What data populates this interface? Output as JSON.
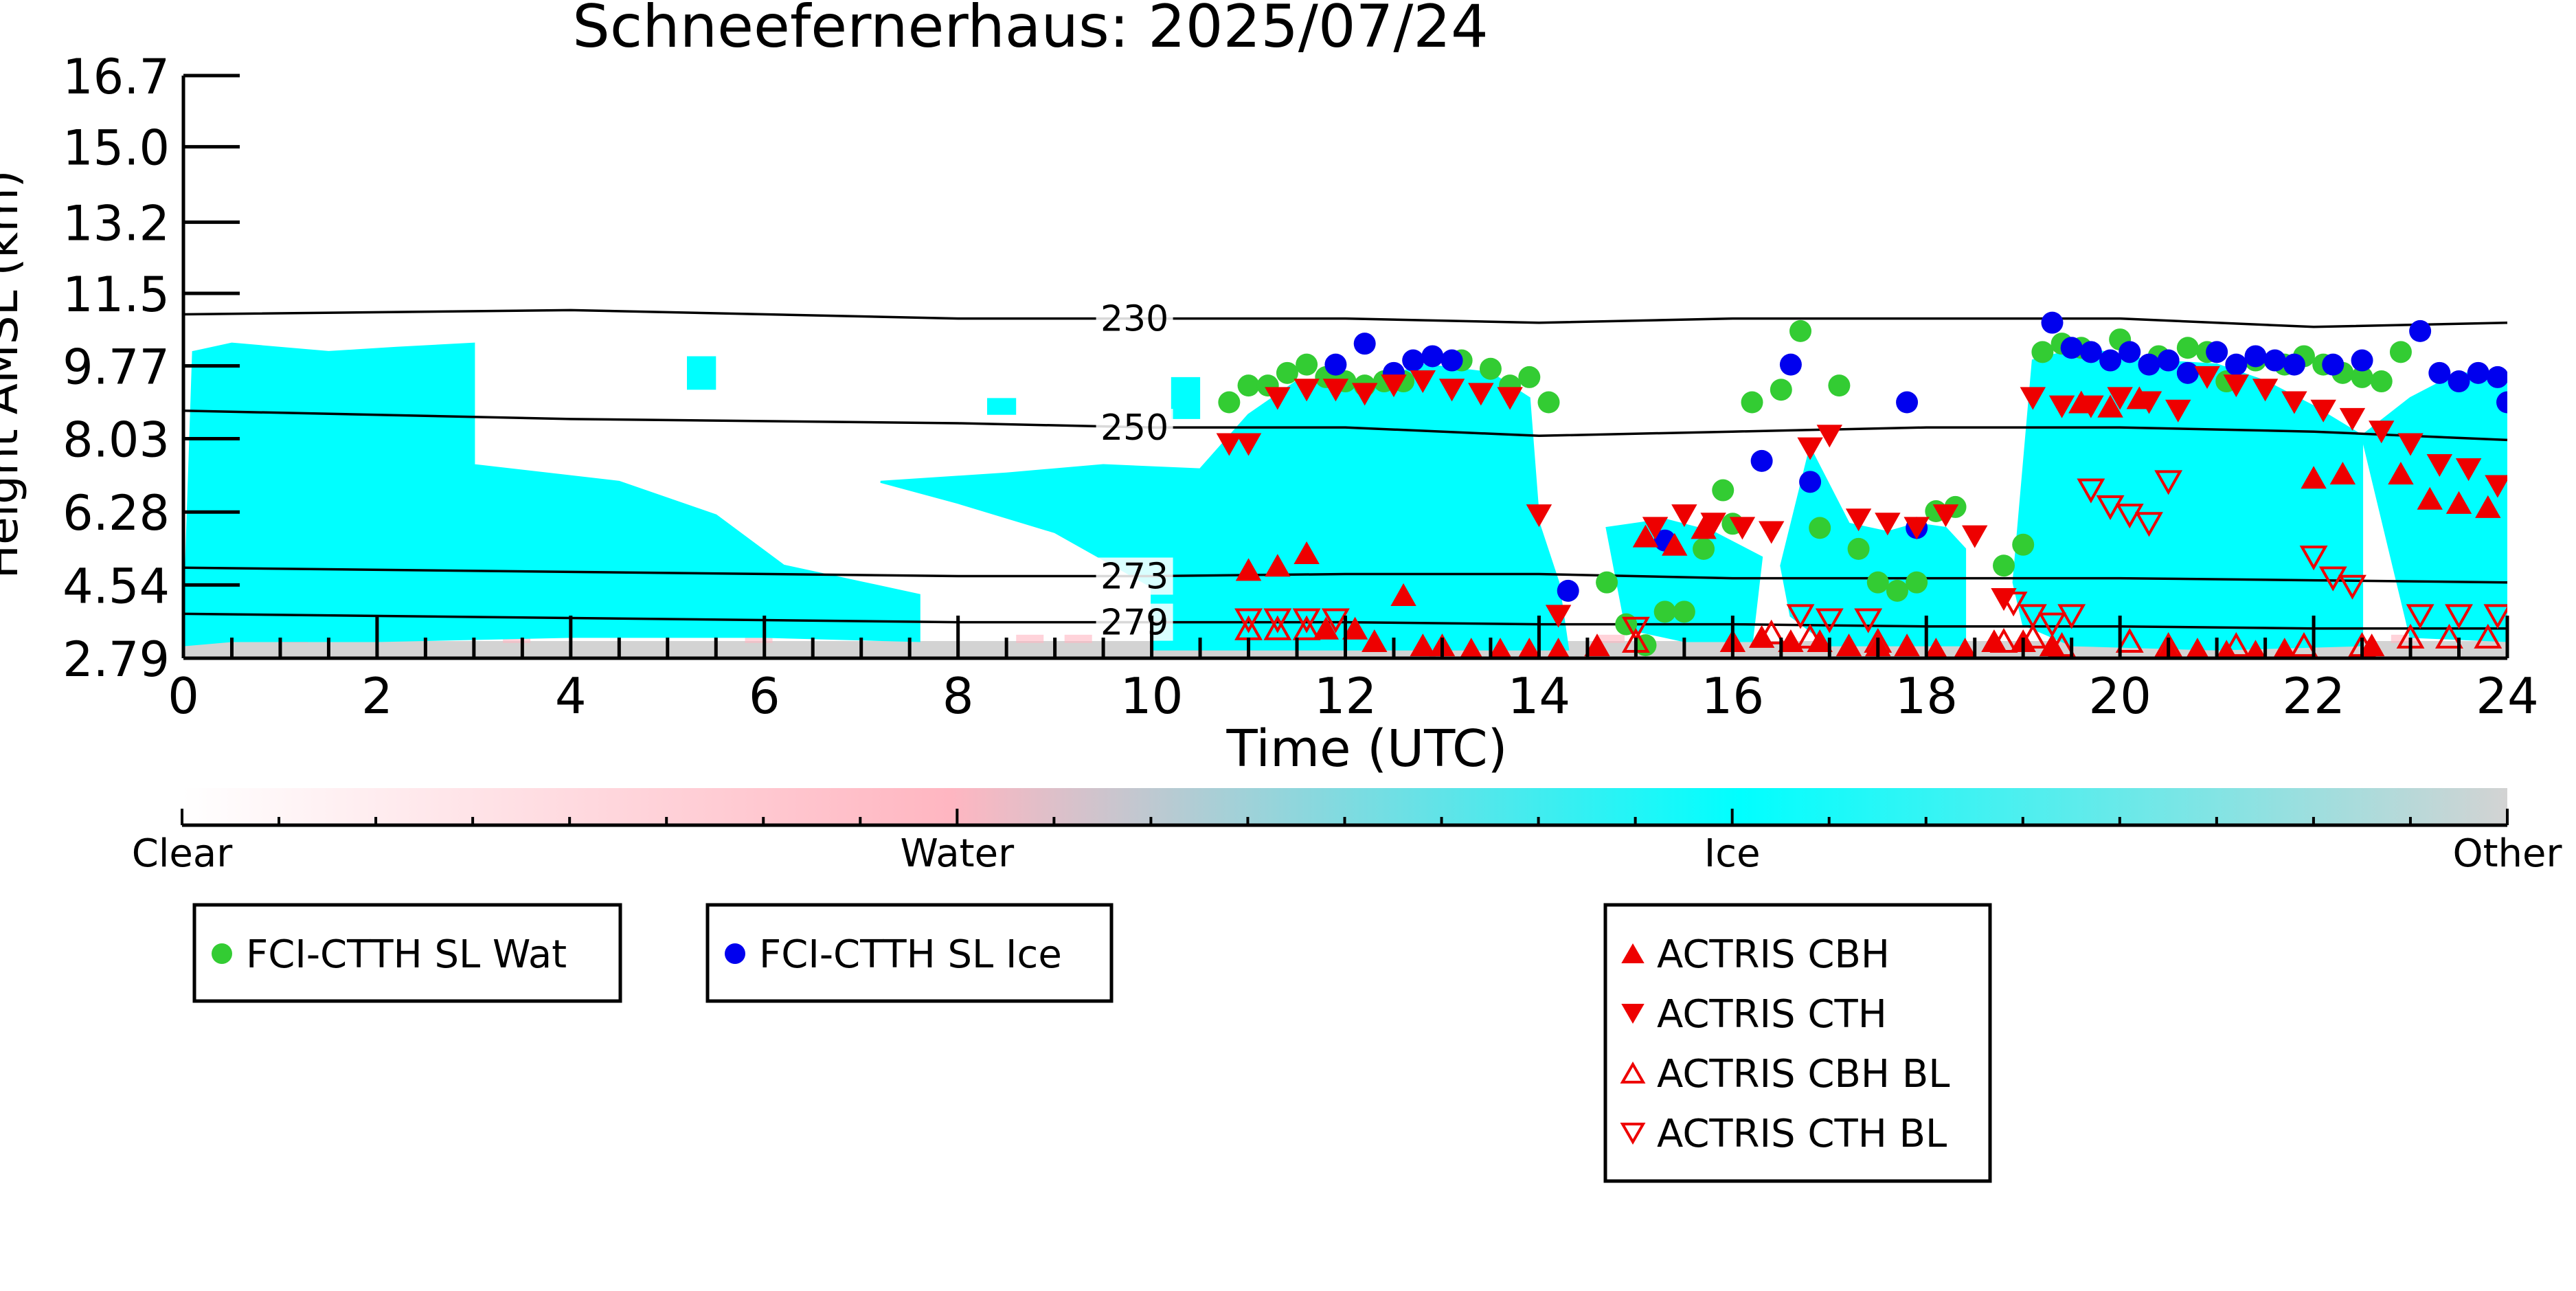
{
  "chart_data": {
    "type": "scatter",
    "title": "Schneefernerhaus: 2025/07/24",
    "xlabel": "Time (UTC)",
    "ylabel": "Height AMSL (km)",
    "xlim": [
      0,
      24
    ],
    "ylim": [
      2.79,
      16.7
    ],
    "x_ticks": [
      0,
      2,
      4,
      6,
      8,
      10,
      12,
      14,
      16,
      18,
      20,
      22,
      24
    ],
    "y_ticks": [
      2.79,
      4.54,
      6.28,
      8.03,
      9.77,
      11.5,
      13.2,
      15.0,
      16.7
    ],
    "y_tick_labels": [
      "2.79",
      "4.54",
      "6.28",
      "8.03",
      "9.77",
      "11.5",
      "13.2",
      "15.0",
      "16.7"
    ],
    "grid": false,
    "background_field": {
      "description_classes": [
        "Clear",
        "Water",
        "Ice",
        "Other"
      ],
      "class_colors": {
        "Clear": "#ffffff",
        "Water": "#ffb6c1",
        "Ice": "#00ffff",
        "Other": "#d3d3d3"
      },
      "ice_regions": [
        {
          "x": [
            0,
            0.1,
            0.5,
            1.5,
            2.2,
            3.0,
            3.0,
            4.5,
            5.5,
            6.2,
            7.0,
            7.6,
            7.6,
            6.0,
            4.0,
            2.0,
            0.5,
            0
          ],
          "y": [
            3.1,
            10.1,
            10.3,
            10.1,
            10.2,
            10.3,
            7.4,
            7.0,
            6.2,
            5.0,
            4.6,
            4.3,
            3.2,
            3.3,
            3.3,
            3.2,
            3.2,
            3.1
          ]
        },
        {
          "x": [
            7.2,
            8.5,
            9.5,
            10.5,
            11.0,
            11.5,
            12.2,
            12.8,
            13.5,
            13.9,
            14.0,
            14.2,
            14.3,
            12.0,
            10.0,
            10.0,
            9.0,
            8.0
          ],
          "y": [
            7.0,
            7.2,
            7.4,
            7.3,
            8.6,
            9.4,
            9.3,
            9.8,
            9.6,
            9.0,
            6.0,
            4.6,
            3.0,
            3.0,
            3.0,
            4.5,
            5.8,
            6.5
          ]
        },
        {
          "x": [
            14.7,
            15.3,
            15.8,
            16.3,
            16.2,
            15.5,
            14.9
          ],
          "y": [
            5.9,
            6.1,
            5.8,
            5.2,
            3.2,
            3.2,
            3.5
          ]
        },
        {
          "x": [
            16.5,
            16.8,
            17.2,
            17.6,
            17.9,
            18.2,
            18.4,
            18.4,
            17.0,
            16.6
          ],
          "y": [
            5.0,
            7.8,
            6.0,
            5.8,
            6.0,
            5.9,
            5.4,
            3.1,
            3.1,
            3.8
          ]
        },
        {
          "x": [
            18.9,
            19.1,
            19.6,
            20.3,
            21.0,
            21.5,
            22.0,
            22.5,
            22.5,
            21.0,
            19.5,
            19.0
          ],
          "y": [
            4.6,
            9.9,
            10.2,
            9.9,
            9.8,
            9.4,
            8.8,
            8.1,
            3.1,
            3.0,
            3.1,
            3.6
          ]
        },
        {
          "x": [
            22.5,
            23.0,
            23.5,
            24.0,
            24.0,
            23.0
          ],
          "y": [
            8.1,
            9.0,
            9.6,
            9.5,
            3.2,
            3.3
          ]
        }
      ],
      "ice_patches": [
        {
          "x": [
            5.2,
            5.5,
            5.5,
            5.2
          ],
          "y": [
            10.0,
            10.0,
            9.2,
            9.2
          ]
        },
        {
          "x": [
            8.3,
            8.6,
            8.6,
            8.3
          ],
          "y": [
            9.0,
            9.0,
            8.6,
            8.6
          ]
        },
        {
          "x": [
            10.2,
            10.5,
            10.5,
            10.2
          ],
          "y": [
            9.5,
            9.5,
            8.5,
            8.5
          ]
        }
      ],
      "other_layer": {
        "x": [
          0,
          24
        ],
        "y": [
          2.79,
          3.2
        ]
      }
    },
    "isotherms": [
      {
        "label": "230",
        "x": [
          0,
          4,
          8,
          10,
          12,
          14,
          16,
          18,
          20,
          22,
          24
        ],
        "y": [
          11.0,
          11.1,
          10.9,
          10.9,
          10.9,
          10.8,
          10.9,
          10.9,
          10.9,
          10.7,
          10.8
        ]
      },
      {
        "label": "250",
        "x": [
          0,
          4,
          8,
          10,
          12,
          14,
          16,
          18,
          20,
          22,
          24
        ],
        "y": [
          8.7,
          8.5,
          8.4,
          8.3,
          8.3,
          8.1,
          8.2,
          8.3,
          8.3,
          8.2,
          8.0
        ]
      },
      {
        "label": "273",
        "x": [
          0,
          4,
          8,
          10,
          12,
          14,
          16,
          18,
          20,
          22,
          24
        ],
        "y": [
          4.95,
          4.85,
          4.75,
          4.75,
          4.8,
          4.8,
          4.7,
          4.7,
          4.7,
          4.65,
          4.6
        ]
      },
      {
        "label": "279",
        "x": [
          0,
          4,
          8,
          10,
          12,
          14,
          16,
          18,
          20,
          22,
          24
        ],
        "y": [
          3.85,
          3.75,
          3.65,
          3.65,
          3.65,
          3.6,
          3.6,
          3.55,
          3.55,
          3.5,
          3.5
        ]
      }
    ],
    "series": [
      {
        "name": "FCI-CTTH SL Wat",
        "marker": "circle",
        "color": "#33cc33",
        "x": [
          10.8,
          11.0,
          11.2,
          11.4,
          11.6,
          11.8,
          12.0,
          12.2,
          12.4,
          12.6,
          13.2,
          13.5,
          13.7,
          13.9,
          14.1,
          14.7,
          14.9,
          15.1,
          15.3,
          15.5,
          15.7,
          15.9,
          16.0,
          16.2,
          16.5,
          16.7,
          16.9,
          17.1,
          17.3,
          17.5,
          17.7,
          17.9,
          18.1,
          18.3,
          18.8,
          19.0,
          19.2,
          19.4,
          19.6,
          20.0,
          20.4,
          20.7,
          20.9,
          21.1,
          21.4,
          21.7,
          21.9,
          22.1,
          22.3,
          22.5,
          22.7,
          22.9
        ],
        "y": [
          8.9,
          9.3,
          9.3,
          9.6,
          9.8,
          9.5,
          9.4,
          9.3,
          9.4,
          9.4,
          9.9,
          9.7,
          9.3,
          9.5,
          8.9,
          4.6,
          3.6,
          3.1,
          3.9,
          3.9,
          5.4,
          6.8,
          6.0,
          8.9,
          9.2,
          10.6,
          5.9,
          9.3,
          5.4,
          4.6,
          4.4,
          4.6,
          6.3,
          6.4,
          5.0,
          5.5,
          10.1,
          10.3,
          10.2,
          10.4,
          10.0,
          10.2,
          10.1,
          9.4,
          9.9,
          9.8,
          10.0,
          9.8,
          9.6,
          9.5,
          9.4,
          10.1
        ]
      },
      {
        "name": "FCI-CTTH SL Ice",
        "marker": "circle",
        "color": "#0000ee",
        "x": [
          11.9,
          12.2,
          12.5,
          12.7,
          12.9,
          13.1,
          14.3,
          15.3,
          16.3,
          16.6,
          16.8,
          17.8,
          17.9,
          19.3,
          19.5,
          19.7,
          19.9,
          20.1,
          20.3,
          20.5,
          20.7,
          21.0,
          21.2,
          21.4,
          21.6,
          21.8,
          22.2,
          22.5,
          23.1,
          23.3,
          23.5,
          23.7,
          23.9,
          24.0
        ],
        "y": [
          9.8,
          10.3,
          9.6,
          9.9,
          10.0,
          9.9,
          4.4,
          5.6,
          7.5,
          9.8,
          7.0,
          8.9,
          5.9,
          10.8,
          10.2,
          10.1,
          9.9,
          10.1,
          9.8,
          9.9,
          9.6,
          10.1,
          9.8,
          10.0,
          9.9,
          9.8,
          9.8,
          9.9,
          10.6,
          9.6,
          9.4,
          9.6,
          9.5,
          8.9
        ]
      },
      {
        "name": "ACTRIS CBH",
        "marker": "triangle-up",
        "color": "#ee0000",
        "filled": true,
        "x": [
          11.0,
          11.3,
          11.6,
          11.8,
          12.1,
          12.3,
          12.6,
          12.8,
          13.0,
          13.3,
          13.6,
          13.9,
          14.2,
          14.6,
          15.1,
          15.4,
          15.7,
          16.0,
          16.3,
          16.6,
          16.9,
          17.2,
          17.5,
          17.8,
          18.1,
          18.4,
          18.7,
          19.0,
          19.3,
          19.6,
          19.9,
          20.2,
          20.5,
          20.8,
          21.1,
          21.4,
          21.7,
          22.0,
          22.3,
          22.6,
          22.9,
          23.2,
          23.5,
          23.8
        ],
        "y": [
          4.9,
          5.0,
          5.3,
          3.5,
          3.5,
          3.2,
          4.3,
          3.1,
          3.1,
          3.0,
          3.0,
          3.0,
          3.0,
          3.1,
          5.7,
          5.5,
          5.9,
          3.2,
          3.3,
          3.2,
          3.2,
          3.1,
          3.1,
          3.1,
          3.0,
          3.0,
          3.2,
          3.2,
          3.1,
          8.9,
          8.8,
          9.0,
          3.0,
          3.0,
          2.95,
          2.95,
          3.0,
          7.1,
          7.2,
          3.1,
          7.2,
          6.6,
          6.5,
          6.4
        ]
      },
      {
        "name": "ACTRIS CTH",
        "marker": "triangle-down",
        "color": "#ee0000",
        "filled": true,
        "x": [
          10.8,
          11.0,
          11.3,
          11.6,
          11.9,
          12.2,
          12.5,
          12.8,
          13.1,
          13.4,
          13.7,
          14.0,
          14.2,
          15.2,
          15.5,
          15.8,
          16.1,
          16.4,
          16.8,
          17.0,
          17.3,
          17.6,
          17.9,
          18.2,
          18.5,
          18.8,
          19.1,
          19.4,
          19.7,
          20.0,
          20.3,
          20.6,
          20.9,
          21.2,
          21.5,
          21.8,
          22.1,
          22.4,
          22.7,
          23.0,
          23.3,
          23.6,
          23.9
        ],
        "y": [
          7.9,
          7.9,
          9.0,
          9.2,
          9.2,
          9.1,
          9.3,
          9.4,
          9.2,
          9.1,
          9.0,
          6.2,
          3.8,
          5.9,
          6.2,
          6.0,
          5.9,
          5.8,
          7.8,
          8.1,
          6.1,
          6.0,
          5.9,
          6.2,
          5.7,
          4.2,
          9.0,
          8.8,
          8.8,
          9.0,
          8.9,
          8.7,
          9.5,
          9.3,
          9.2,
          8.9,
          8.7,
          8.5,
          8.2,
          7.9,
          7.4,
          7.3,
          6.9
        ]
      },
      {
        "name": "ACTRIS CBH BL",
        "marker": "triangle-up",
        "color": "#ee0000",
        "filled": false,
        "x": [
          11.0,
          11.3,
          11.6,
          15.0,
          16.4,
          16.8,
          17.5,
          18.8,
          19.1,
          19.4,
          20.1,
          20.5,
          21.2,
          21.9,
          22.5,
          23.0,
          23.4,
          23.8
        ],
        "y": [
          3.5,
          3.5,
          3.5,
          3.2,
          3.4,
          3.3,
          3.2,
          3.2,
          3.3,
          3.1,
          3.2,
          3.1,
          3.1,
          3.1,
          3.1,
          3.3,
          3.3,
          3.3
        ]
      },
      {
        "name": "ACTRIS CTH BL",
        "marker": "triangle-down",
        "color": "#ee0000",
        "filled": false,
        "x": [
          11.0,
          11.3,
          11.6,
          11.9,
          15.0,
          16.7,
          17.0,
          17.4,
          18.9,
          19.1,
          19.3,
          19.5,
          19.7,
          19.9,
          20.1,
          20.3,
          20.5,
          22.0,
          22.2,
          22.4,
          23.1,
          23.5,
          23.9
        ],
        "y": [
          3.7,
          3.7,
          3.7,
          3.7,
          3.5,
          3.8,
          3.7,
          3.7,
          4.1,
          3.8,
          3.6,
          3.8,
          6.8,
          6.4,
          6.2,
          6.0,
          7.0,
          5.2,
          4.7,
          4.5,
          3.8,
          3.8,
          3.8
        ]
      }
    ],
    "colorbar": {
      "labels": [
        "Clear",
        "Water",
        "Ice",
        "Other"
      ],
      "stops": [
        {
          "pos": 0.0,
          "color": "#ffffff"
        },
        {
          "pos": 0.33,
          "color": "#ffb6c1"
        },
        {
          "pos": 0.67,
          "color": "#00ffff"
        },
        {
          "pos": 1.0,
          "color": "#d3d3d3"
        }
      ]
    },
    "legends": [
      {
        "entries": [
          "FCI-CTTH SL Wat"
        ]
      },
      {
        "entries": [
          "FCI-CTTH SL Ice"
        ]
      },
      {
        "entries": [
          "ACTRIS CBH",
          "ACTRIS CTH",
          "ACTRIS CBH BL",
          "ACTRIS CTH BL"
        ]
      }
    ]
  }
}
